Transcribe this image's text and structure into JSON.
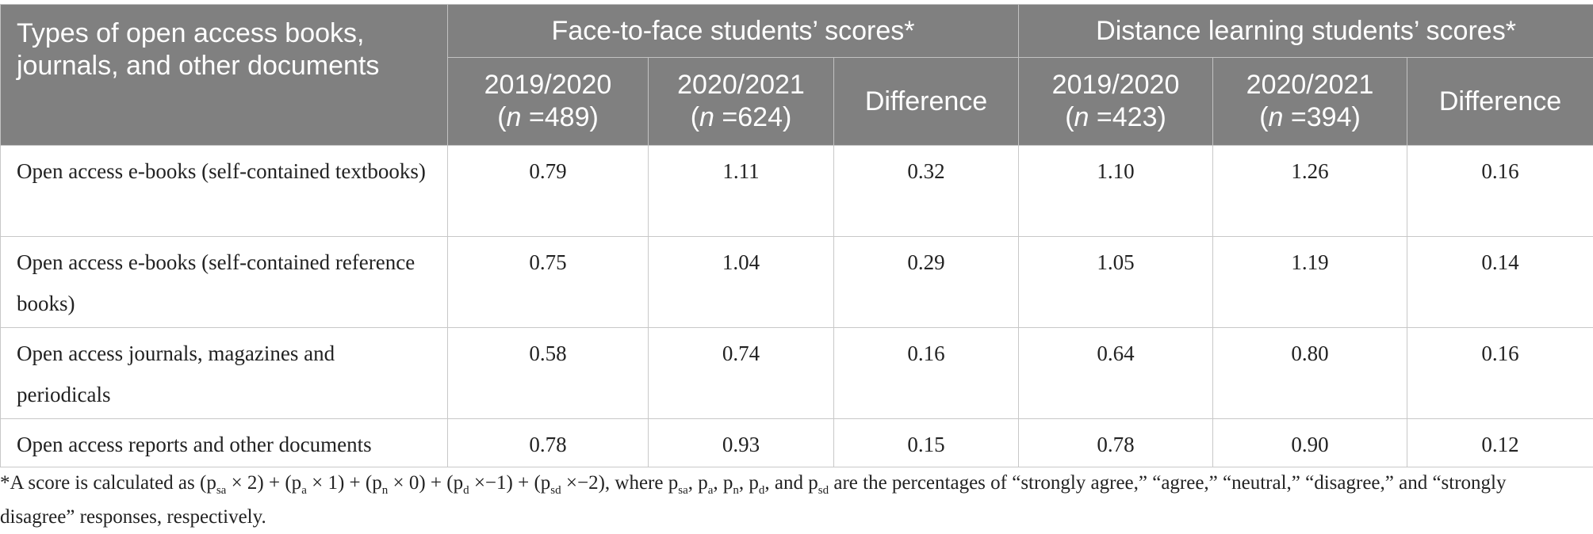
{
  "table": {
    "corner_header": "Types of open access books, journals, and other documents",
    "groups": [
      "Face-to-face students’ scores*",
      "Distance learning students’ scores*"
    ],
    "subheaders": [
      {
        "year": "2019/2020",
        "n_label": "n",
        "n_value": "=489"
      },
      {
        "year": "2020/2021",
        "n_label": "n",
        "n_value": "=624"
      },
      {
        "year": "Difference"
      },
      {
        "year": "2019/2020",
        "n_label": "n",
        "n_value": "=423"
      },
      {
        "year": "2020/2021",
        "n_label": "n",
        "n_value": "=394"
      },
      {
        "year": "Difference"
      }
    ],
    "rows": [
      {
        "label": "Open access e-books (self-contained textbooks)",
        "values": [
          "0.79",
          "1.11",
          "0.32",
          "1.10",
          "1.26",
          "0.16"
        ]
      },
      {
        "label": "Open access e-books (self-contained reference books)",
        "values": [
          "0.75",
          "1.04",
          "0.29",
          "1.05",
          "1.19",
          "0.14"
        ]
      },
      {
        "label": "Open access journals, magazines and periodicals",
        "values": [
          "0.58",
          "0.74",
          "0.16",
          "0.64",
          "0.80",
          "0.16"
        ]
      },
      {
        "label": "Open access reports and other documents",
        "values": [
          "0.78",
          "0.93",
          "0.15",
          "0.78",
          "0.90",
          "0.12"
        ]
      }
    ]
  },
  "footnote": {
    "prefix": "*A score is calculated as (p",
    "terms": [
      {
        "sub": "sa",
        "op": " × 2) + (p"
      },
      {
        "sub": "a",
        "op": " × 1) + (p"
      },
      {
        "sub": "n",
        "op": " × 0) + (p"
      },
      {
        "sub": "d",
        "op": " ×−1) + (p"
      },
      {
        "sub": "sd",
        "op": " ×−2), where p"
      }
    ],
    "where_subs": [
      "sa",
      "a",
      "n",
      "d",
      "sd"
    ],
    "sep": ", p",
    "last_sep": ", and p",
    "suffix": " are the percentages of “strongly agree,” “agree,” “neutral,” “disagree,” and “strongly disagree” responses, respectively."
  }
}
